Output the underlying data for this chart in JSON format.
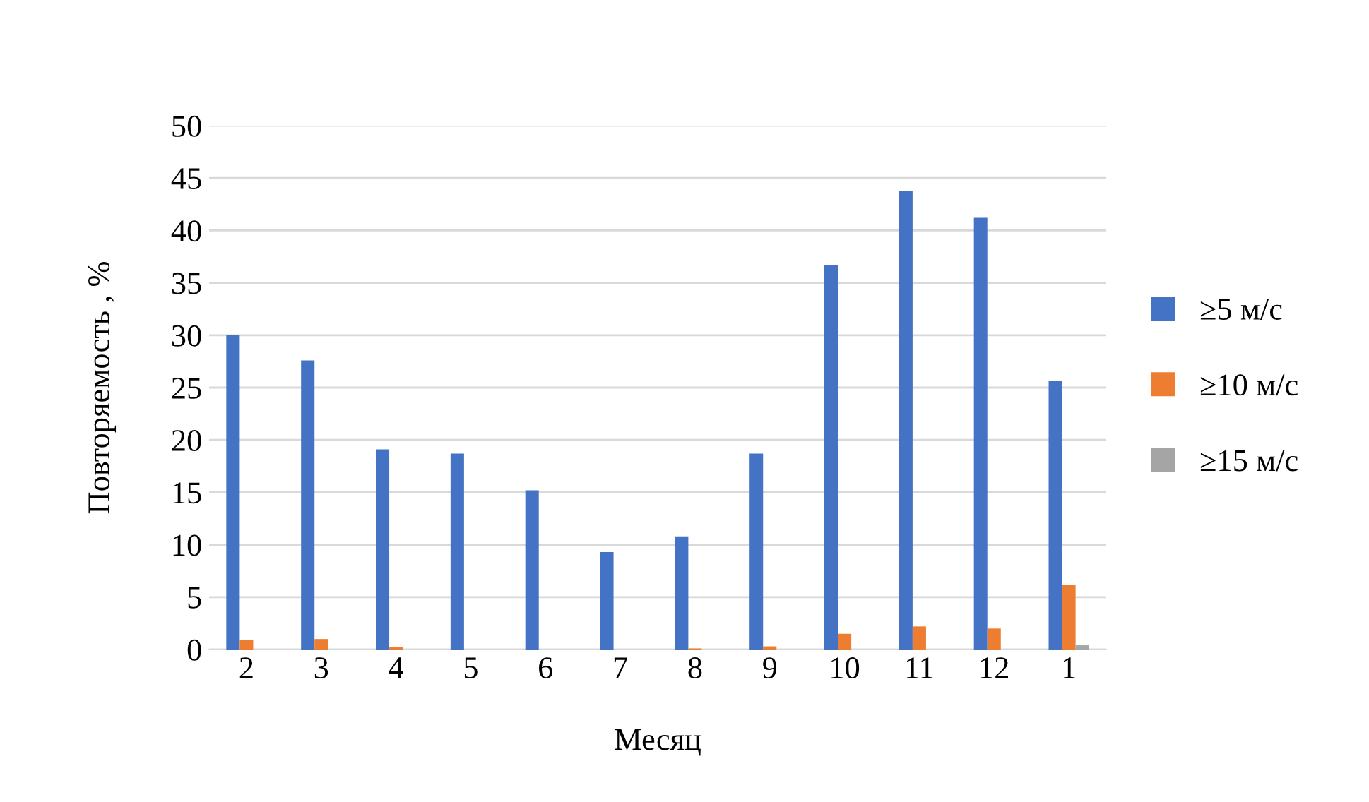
{
  "chart_data": {
    "type": "bar",
    "xlabel": "Месяц",
    "ylabel": "Повторяемость , %",
    "categories": [
      "2",
      "3",
      "4",
      "5",
      "6",
      "7",
      "8",
      "9",
      "10",
      "11",
      "12",
      "1"
    ],
    "series": [
      {
        "name": "≥5 м/с",
        "color": "#4472c4",
        "values": [
          30.0,
          27.6,
          19.1,
          18.7,
          15.2,
          9.3,
          10.8,
          18.7,
          36.7,
          43.8,
          41.2,
          25.6
        ]
      },
      {
        "name": "≥10 м/с",
        "color": "#ed7d31",
        "values": [
          0.9,
          1.0,
          0.2,
          0,
          0,
          0,
          0.1,
          0.3,
          1.5,
          2.2,
          2.0,
          6.2
        ]
      },
      {
        "name": "≥15 м/с",
        "color": "#a5a5a5",
        "values": [
          0,
          0,
          0,
          0,
          0,
          0,
          0,
          0,
          0,
          0,
          0,
          0.4
        ]
      }
    ],
    "ylim": [
      0,
      50
    ],
    "yticks": [
      0,
      5,
      10,
      15,
      20,
      25,
      30,
      35,
      40,
      45,
      50
    ],
    "grid": "y",
    "legend": "right"
  }
}
